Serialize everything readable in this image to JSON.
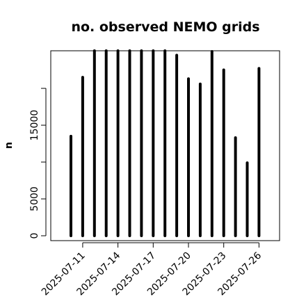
{
  "chart_data": {
    "type": "bar",
    "title": "no. observed NEMO grids",
    "xlabel": "",
    "ylabel": "n",
    "x": [
      "2025-07-10",
      "2025-07-11",
      "2025-07-12",
      "2025-07-13",
      "2025-07-14",
      "2025-07-15",
      "2025-07-16",
      "2025-07-17",
      "2025-07-18",
      "2025-07-19",
      "2025-07-20",
      "2025-07-21",
      "2025-07-22",
      "2025-07-23",
      "2025-07-24",
      "2025-07-25",
      "2025-07-26"
    ],
    "values": [
      13500,
      21500,
      25100,
      25100,
      25100,
      25100,
      25100,
      25100,
      25100,
      24500,
      21300,
      20600,
      25000,
      22500,
      13300,
      9900,
      22700
    ],
    "x_ticks": [
      "2025-07-11",
      "2025-07-14",
      "2025-07-17",
      "2025-07-20",
      "2025-07-23",
      "2025-07-26"
    ],
    "y_ticks": [
      0,
      5000,
      15000
    ],
    "ylim": [
      -500,
      25100
    ],
    "grid": false,
    "legend": "none",
    "colors": {
      "bar": "#000000",
      "axis": "#000000",
      "background": "#ffffff"
    }
  }
}
